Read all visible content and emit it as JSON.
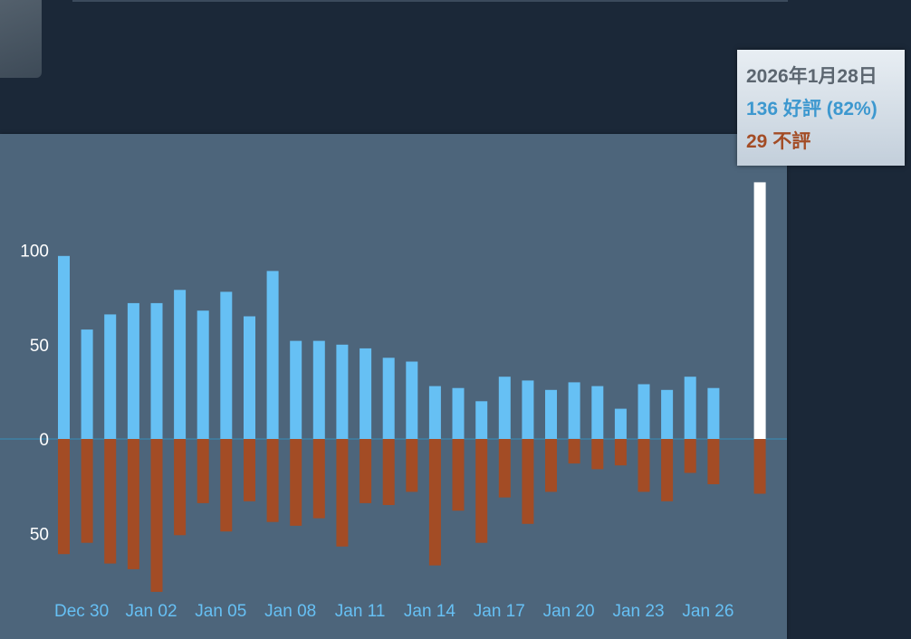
{
  "tooltip": {
    "date": "2026年1月28日",
    "positive_text": "136 好評 (82%)",
    "negative_text": "29 不評"
  },
  "colors": {
    "positive": "#66c0f4",
    "negative": "#a34c25",
    "highlight": "#ffffff",
    "panel": "#4d657b",
    "background": "#1b2838",
    "zero_line": "#417a9b"
  },
  "chart_data": {
    "type": "bar",
    "stacked_diverging": true,
    "x": [
      "Dec 29",
      "Dec 30",
      "Dec 31",
      "Jan 01",
      "Jan 02",
      "Jan 03",
      "Jan 04",
      "Jan 05",
      "Jan 06",
      "Jan 07",
      "Jan 08",
      "Jan 09",
      "Jan 10",
      "Jan 11",
      "Jan 12",
      "Jan 13",
      "Jan 14",
      "Jan 15",
      "Jan 16",
      "Jan 17",
      "Jan 18",
      "Jan 19",
      "Jan 20",
      "Jan 21",
      "Jan 22",
      "Jan 23",
      "Jan 24",
      "Jan 25",
      "Jan 26",
      "Jan 27",
      "Jan 28"
    ],
    "x_tick_labels": [
      "Dec 30",
      "Jan 02",
      "Jan 05",
      "Jan 08",
      "Jan 11",
      "Jan 14",
      "Jan 17",
      "Jan 20",
      "Jan 23",
      "Jan 26"
    ],
    "y_tick_labels": [
      "100",
      "50",
      "0",
      "50"
    ],
    "y_ticks": [
      100,
      50,
      0,
      -50
    ],
    "ylim": [
      -82,
      136
    ],
    "highlight_index": 30,
    "series": [
      {
        "name": "好評",
        "values": [
          97,
          58,
          66,
          72,
          72,
          79,
          68,
          78,
          65,
          89,
          52,
          52,
          50,
          48,
          43,
          41,
          28,
          27,
          20,
          33,
          31,
          26,
          30,
          28,
          16,
          29,
          26,
          33,
          27,
          null,
          136
        ]
      },
      {
        "name": "不評",
        "values": [
          61,
          55,
          66,
          69,
          81,
          51,
          34,
          49,
          33,
          44,
          46,
          42,
          57,
          34,
          35,
          28,
          67,
          38,
          55,
          31,
          45,
          28,
          13,
          16,
          14,
          28,
          33,
          18,
          24,
          null,
          29
        ]
      }
    ]
  }
}
